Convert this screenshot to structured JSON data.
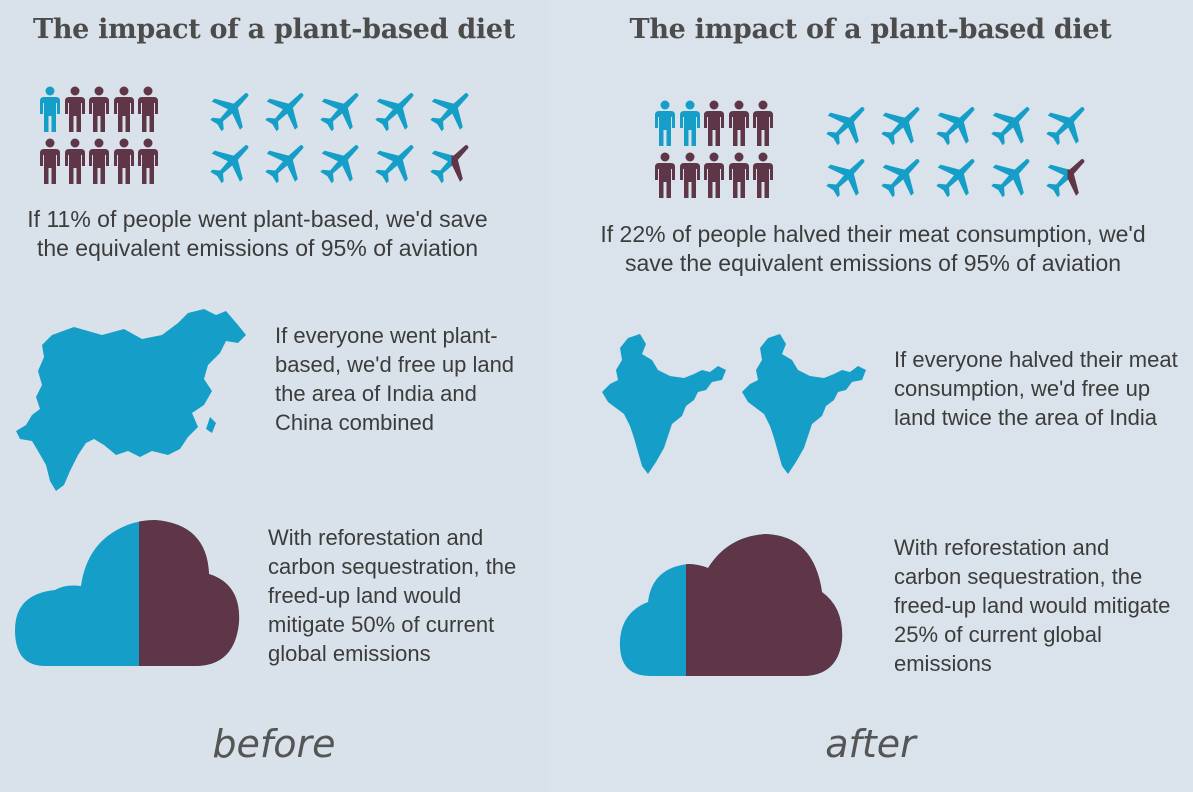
{
  "colors": {
    "blue": "#159fc8",
    "purple": "#5e3648",
    "text": "#3c3c3c",
    "background": "#d9e2ea"
  },
  "before": {
    "title": "The impact of a plant-based diet",
    "people_highlighted": 1,
    "people_total": 10,
    "aviation_fraction": 0.95,
    "aviation_caption": "If 11% of people went plant-based, we'd save the equivalent emissions of 95% of aviation",
    "map_icon": "china-india-map-icon",
    "land_text": "If everyone went plant-based, we'd free up land the area of India and China combined",
    "cloud_fraction": 0.5,
    "mitigation_text": "With reforestation and carbon sequestration, the freed-up land would mitigate 50% of current global emissions",
    "label": "before"
  },
  "after": {
    "title": "The impact of a plant-based diet",
    "people_highlighted": 2,
    "people_total": 10,
    "aviation_fraction": 0.95,
    "aviation_caption": "If 22% of people halved their meat consumption, we'd save the equivalent emissions of 95% of aviation",
    "map_icon": "india-map-icon",
    "land_text": "If everyone halved their meat consumption, we'd free up land twice the area of India",
    "cloud_fraction": 0.25,
    "mitigation_text": "With reforestation and carbon sequestration, the freed-up land would mitigate 25% of current global emissions",
    "label": "after"
  }
}
